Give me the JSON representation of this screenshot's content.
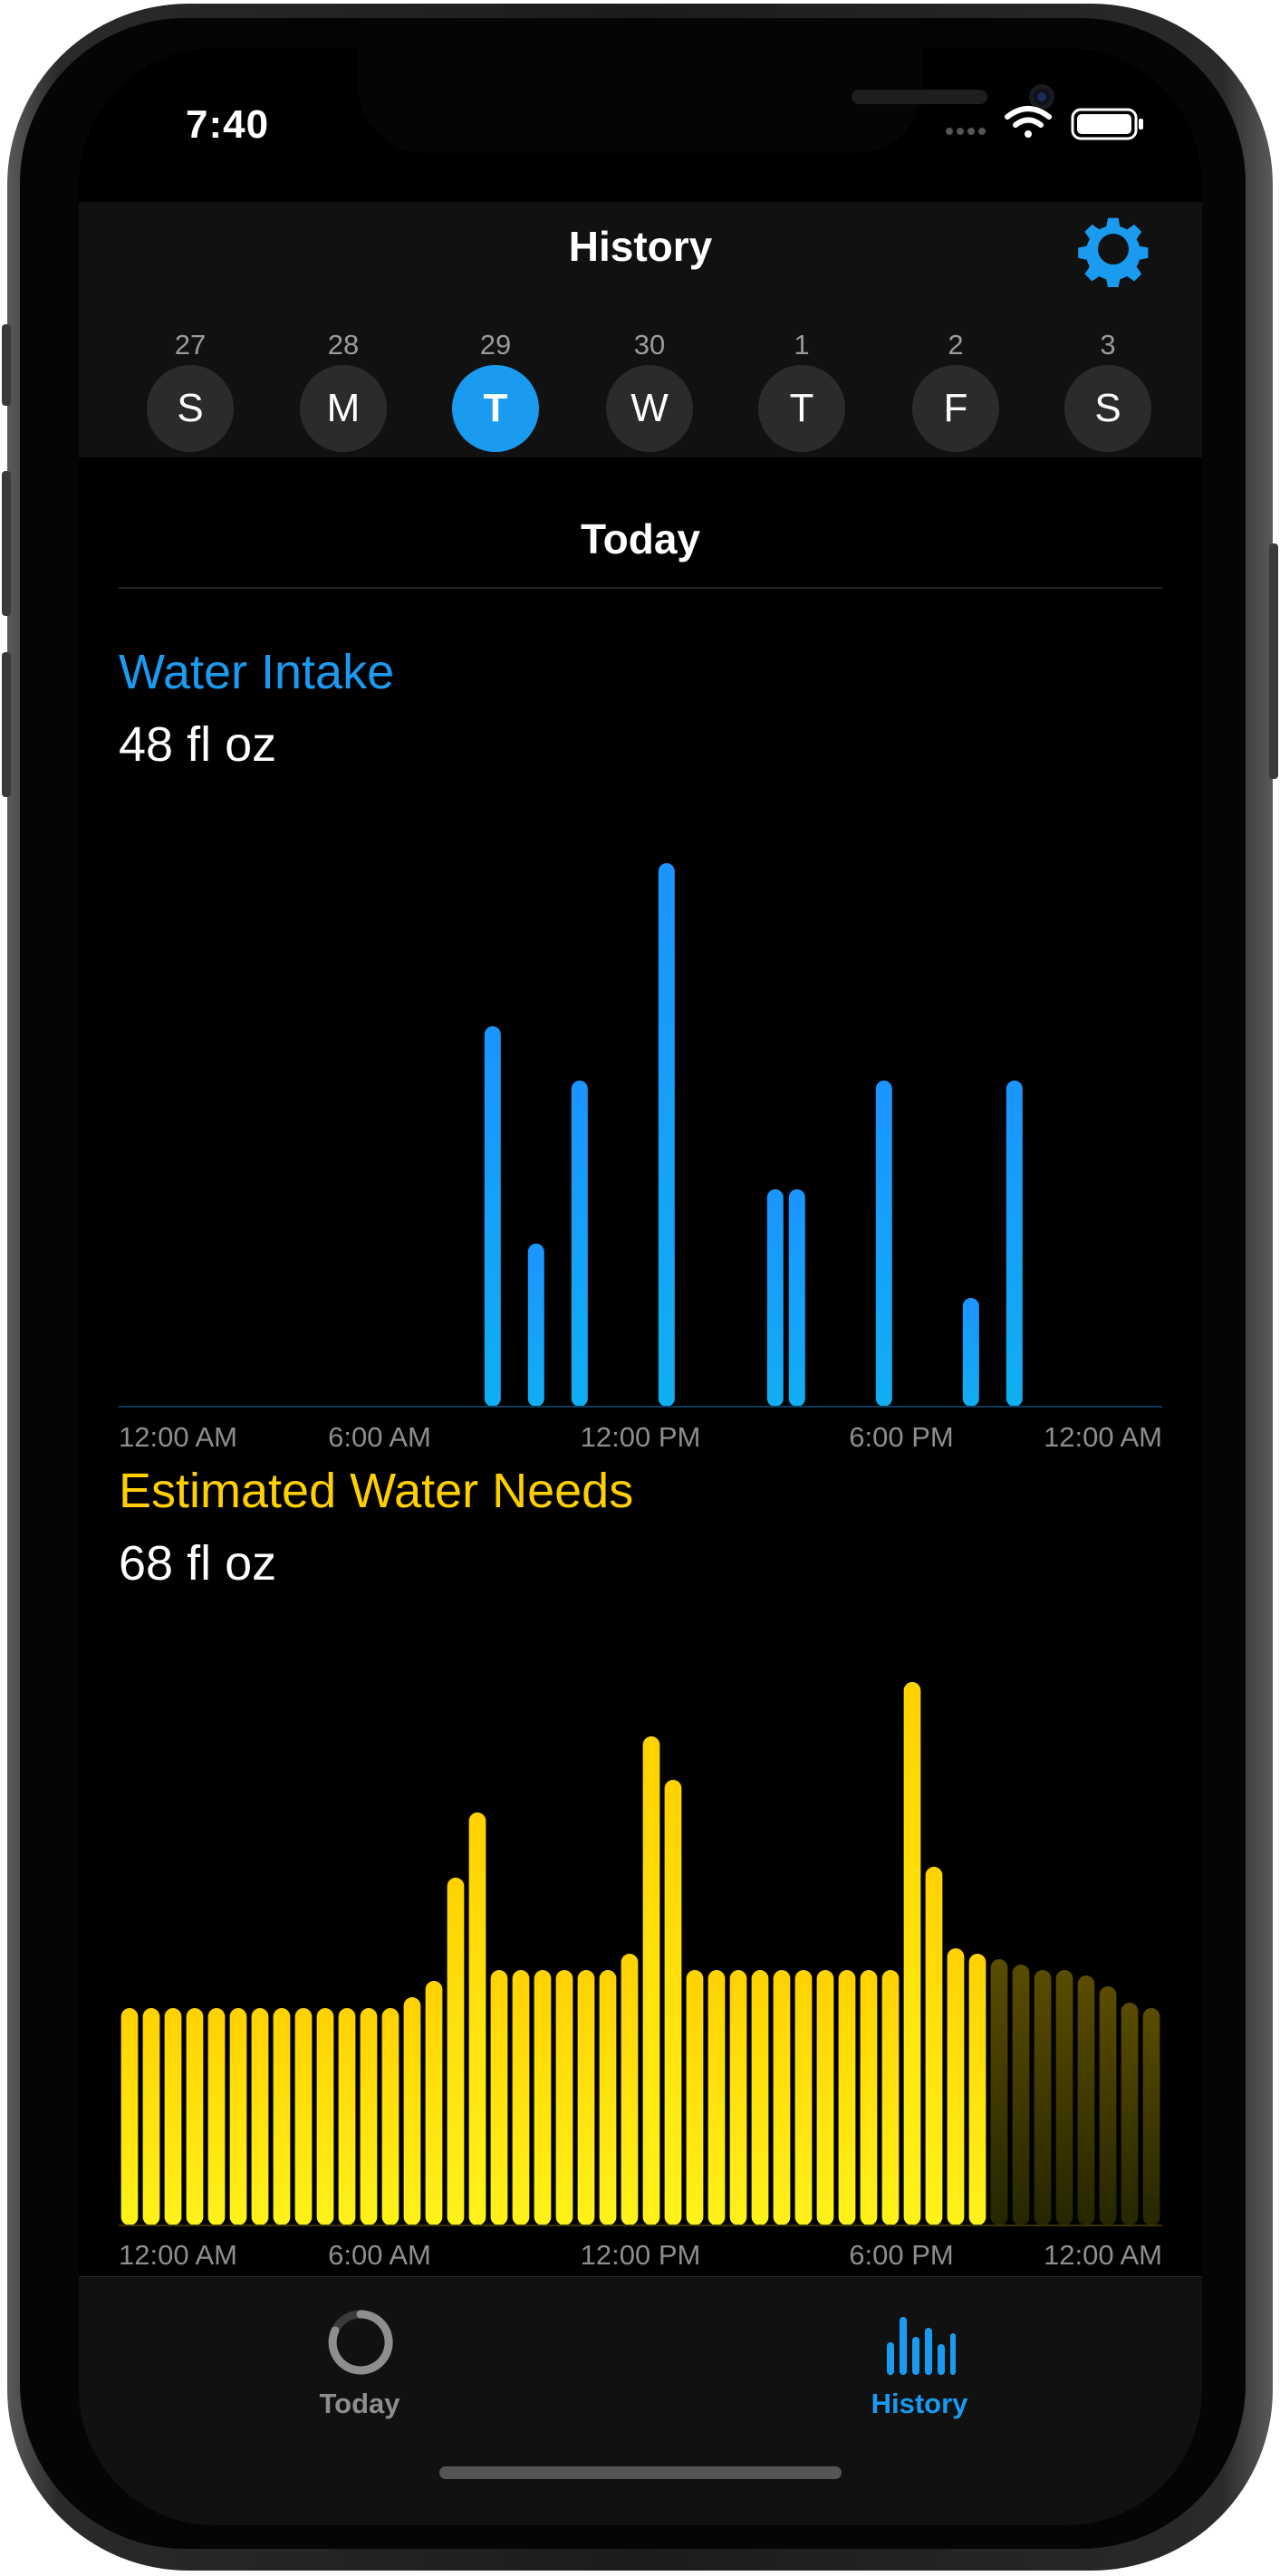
{
  "status_bar": {
    "time": "7:40"
  },
  "header": {
    "title": "History",
    "settings_icon": "gear-icon"
  },
  "week": {
    "days": [
      {
        "number": "27",
        "letter": "S",
        "selected": false
      },
      {
        "number": "28",
        "letter": "M",
        "selected": false
      },
      {
        "number": "29",
        "letter": "T",
        "selected": true
      },
      {
        "number": "30",
        "letter": "W",
        "selected": false
      },
      {
        "number": "1",
        "letter": "T",
        "selected": false
      },
      {
        "number": "2",
        "letter": "F",
        "selected": false
      },
      {
        "number": "3",
        "letter": "S",
        "selected": false
      }
    ]
  },
  "section": {
    "title": "Today"
  },
  "colors": {
    "accent_blue": "#1a9bf0",
    "accent_yellow": "#ffd000"
  },
  "chart_data": [
    {
      "type": "bar",
      "title": "Water Intake",
      "value_label": "48 fl oz",
      "x_unit": "hour",
      "xlim": [
        0,
        24
      ],
      "ylim": [
        0,
        10
      ],
      "x_tick_labels": [
        "12:00 AM",
        "6:00 AM",
        "12:00 PM",
        "6:00 PM",
        "12:00 AM"
      ],
      "x": [
        8.6,
        9.6,
        10.6,
        12.6,
        15.1,
        15.6,
        17.6,
        19.6,
        20.6
      ],
      "values": [
        7,
        3,
        6,
        10,
        4,
        4,
        6,
        2,
        6
      ]
    },
    {
      "type": "bar",
      "title": "Estimated Water Needs",
      "value_label": "68 fl oz",
      "x_unit": "half-hour index",
      "xlim": [
        0,
        48
      ],
      "ylim": [
        0,
        10
      ],
      "x_tick_labels": [
        "12:00 AM",
        "6:00 AM",
        "12:00 PM",
        "6:00 PM",
        "12:00 AM"
      ],
      "future_from_index": 40,
      "values": [
        4,
        4,
        4,
        4,
        4,
        4,
        4,
        4,
        4,
        4,
        4,
        4,
        4,
        4.2,
        4.5,
        6.4,
        7.6,
        4.7,
        4.7,
        4.7,
        4.7,
        4.7,
        4.7,
        5,
        9,
        8.2,
        4.7,
        4.7,
        4.7,
        4.7,
        4.7,
        4.7,
        4.7,
        4.7,
        4.7,
        4.7,
        10,
        6.6,
        5.1,
        5,
        4.9,
        4.8,
        4.7,
        4.7,
        4.6,
        4.4,
        4.1,
        4
      ]
    }
  ],
  "tabs": [
    {
      "label": "Today",
      "icon": "progress-ring-icon",
      "active": false
    },
    {
      "label": "History",
      "icon": "bar-chart-icon",
      "active": true
    }
  ]
}
